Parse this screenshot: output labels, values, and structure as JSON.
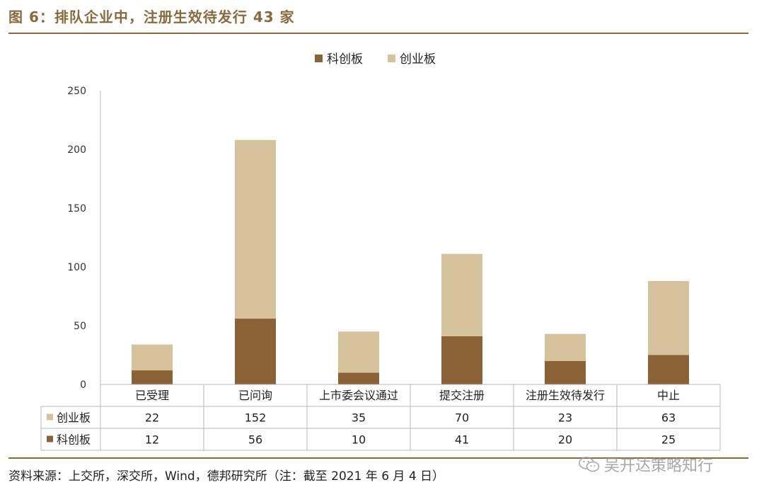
{
  "header": {
    "title": "图 6：排队企业中，注册生效待发行 43 家"
  },
  "footer": {
    "source": "资料来源：上交所，深交所，Wind，德邦研究所（注：截至 2021 年 6 月 4 日）"
  },
  "watermark": {
    "text": "吴开达策略知行",
    "icon": "wechat-icon"
  },
  "colors": {
    "star": "#8b6136",
    "gem": "#d6c29d",
    "accent": "#8a6a3d"
  },
  "chart_data": {
    "type": "bar",
    "stacked": true,
    "categories": [
      "已受理",
      "已问询",
      "上市委会议通过",
      "提交注册",
      "注册生效待发行",
      "中止"
    ],
    "series": [
      {
        "name": "科创板",
        "values": [
          12,
          56,
          10,
          41,
          20,
          25
        ]
      },
      {
        "name": "创业板",
        "values": [
          22,
          152,
          35,
          70,
          23,
          63
        ]
      }
    ],
    "ylim": [
      0,
      250
    ],
    "yticks": [
      "0",
      "50",
      "100",
      "150",
      "200",
      "250"
    ],
    "legend_position": "top-center",
    "data_table": true,
    "grid": false
  }
}
